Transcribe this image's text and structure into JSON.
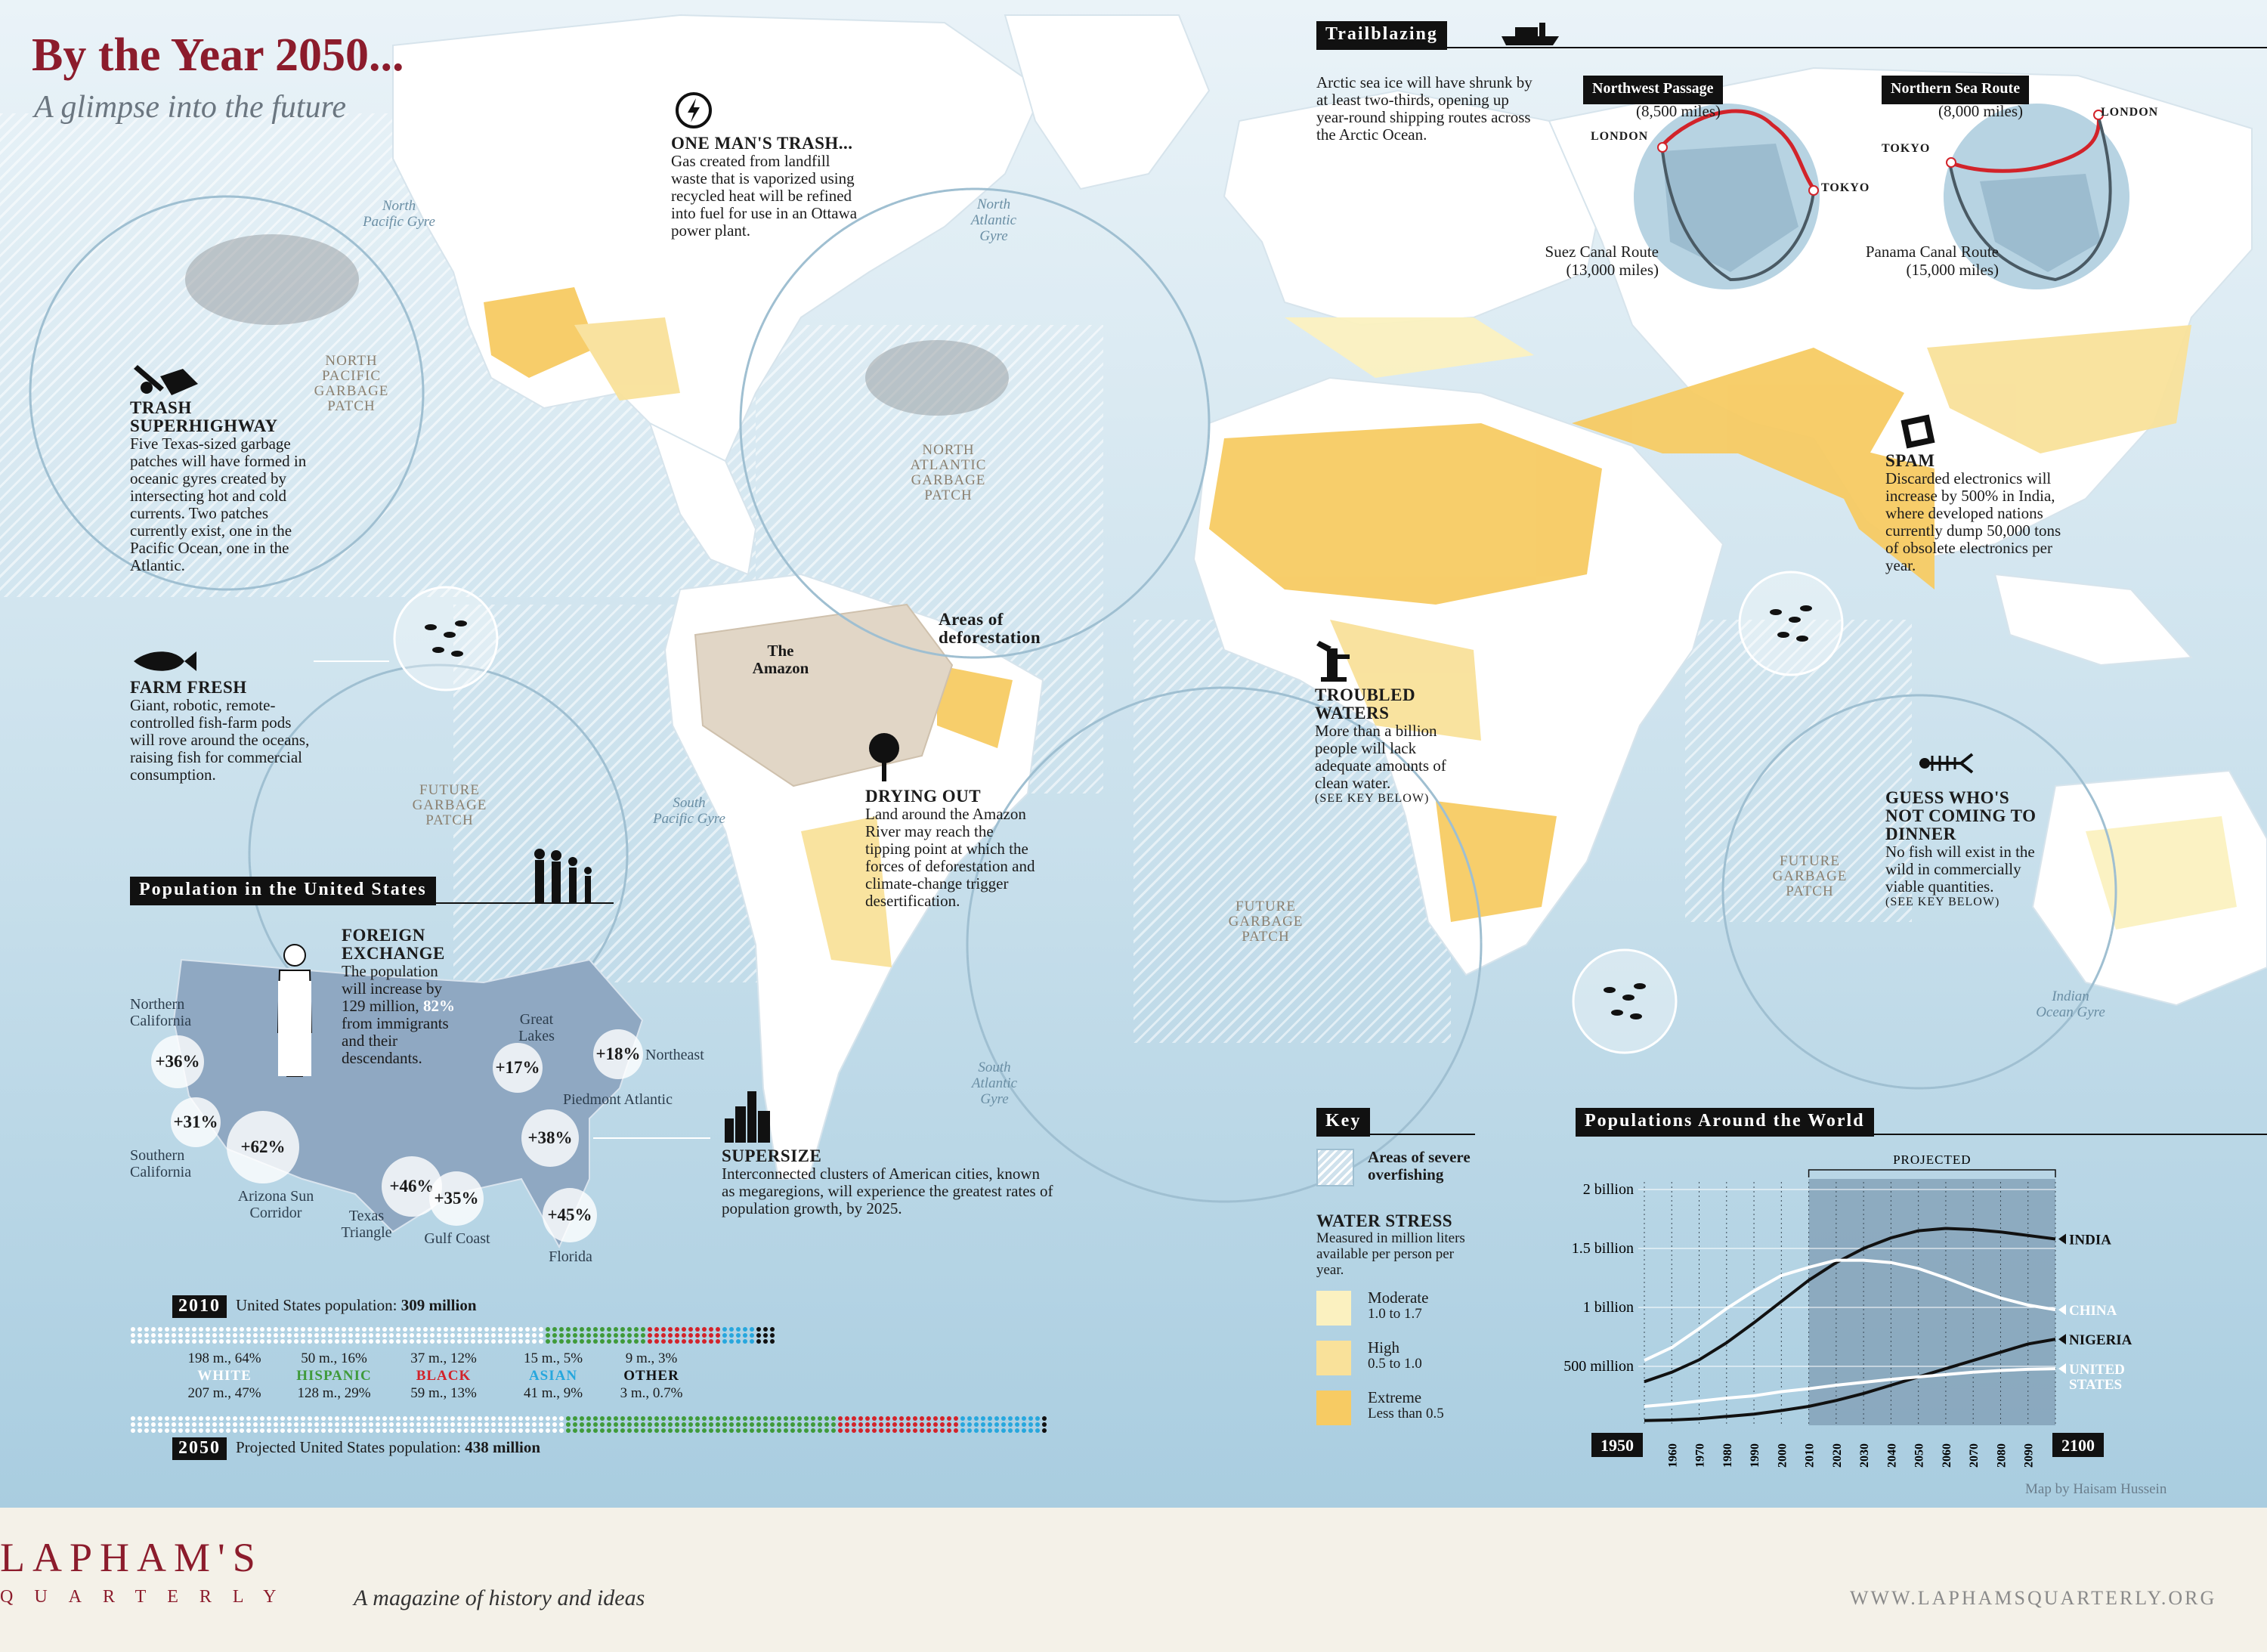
{
  "header": {
    "title": "By the Year 2050...",
    "subtitle": "A glimpse into the future"
  },
  "trash": {
    "title": "One Man's Trash...",
    "body": "Gas created from landfill waste that is vaporized using recycled heat will be refined into fuel for use in an Ottawa power plant."
  },
  "trailblazing": {
    "label": "Trailblazing",
    "body": "Arctic sea ice will have shrunk by at least two-thirds, opening up year-round shipping routes across the Arctic Ocean.",
    "globe1": {
      "route": "Northwest Passage",
      "route_miles": "(8,500 miles)",
      "city_a": "LONDON",
      "city_b": "TOKYO",
      "alt_route": "Suez Canal Route",
      "alt_miles": "(13,000 miles)"
    },
    "globe2": {
      "route": "Northern Sea Route",
      "route_miles": "(8,000 miles)",
      "city_a": "TOKYO",
      "city_b": "LONDON",
      "alt_route": "Panama Canal Route",
      "alt_miles": "(15,000 miles)"
    }
  },
  "superhighway": {
    "title": "Trash Superhighway",
    "body": "Five Texas-sized garbage patches will have formed in oceanic gyres created by intersecting hot and cold currents. Two patches currently exist, one in the Pacific Ocean, one in the Atlantic."
  },
  "farm": {
    "title": "Farm Fresh",
    "body": "Giant, robotic, remote-controlled fish-farm pods will rove around the oceans, raising fish for commercial consumption."
  },
  "amazon": {
    "label": "The Amazon",
    "deforest": "Areas of deforestation"
  },
  "drying": {
    "title": "Drying Out",
    "body": "Land around the Amazon River may reach the tipping point at which the forces of deforestation and climate-change trigger desertification."
  },
  "troubled": {
    "title": "Troubled Waters",
    "body": "More than a billion people will lack adequate amounts of clean water.",
    "note": "(see key below)"
  },
  "spam": {
    "title": "Spam",
    "body": "Discarded electronics will increase by 500% in India, where developed nations currently dump 50,000 tons of obsolete electronics per year."
  },
  "dinner": {
    "title": "Guess Who's Not Coming to Dinner",
    "body": "No fish will exist in the wild in commercially viable quantities.",
    "note": "(see key below)"
  },
  "gyres": {
    "north_pacific": "North Pacific Gyre",
    "north_atlantic": "North Atlantic Gyre",
    "south_pacific": "South Pacific Gyre",
    "south_atlantic": "South Atlantic Gyre",
    "indian": "Indian Ocean Gyre"
  },
  "patches": {
    "north_pacific": "NORTH PACIFIC GARBAGE PATCH",
    "north_atlantic": "NORTH ATLANTIC GARBAGE PATCH",
    "future1": "FUTURE GARBAGE PATCH",
    "future2": "FUTURE GARBAGE PATCH",
    "future3": "FUTURE GARBAGE PATCH"
  },
  "us_pop": {
    "label": "Population in the United States",
    "foreign_title": "Foreign Exchange",
    "foreign_body_1": "The population will increase by 129 million,",
    "foreign_pct": "82%",
    "foreign_body_2": "from immigrants and their descendants.",
    "regions": [
      {
        "name": "Northern California",
        "value": "+36%"
      },
      {
        "name": "Southern California",
        "value": "+31%"
      },
      {
        "name": "Arizona Sun Corridor",
        "value": "+62%"
      },
      {
        "name": "Texas Triangle",
        "value": "+46%"
      },
      {
        "name": "Gulf Coast",
        "value": "+35%"
      },
      {
        "name": "Great Lakes",
        "value": "+17%"
      },
      {
        "name": "Northeast",
        "value": "+18%"
      },
      {
        "name": "Piedmont Atlantic",
        "value": "+38%"
      },
      {
        "name": "Florida",
        "value": "+45%"
      }
    ],
    "supersize_title": "Supersize",
    "supersize_body": "Interconnected clusters of American cities, known as megaregions, will experience the greatest rates of population growth, by 2025.",
    "y2010": "2010",
    "y2010_text": "United States population:",
    "y2010_value": "309 million",
    "y2050": "2050",
    "y2050_text": "Projected United States population:",
    "y2050_value": "438 million",
    "groups": [
      {
        "name": "WHITE",
        "v2010": "198 m., 64%",
        "v2050": "207 m., 47%",
        "color": "#ffffff",
        "p2010": 64,
        "p2050": 47
      },
      {
        "name": "HISPANIC",
        "v2010": "50 m., 16%",
        "v2050": "128 m., 29%",
        "color": "#3f9a3a",
        "p2010": 16,
        "p2050": 29
      },
      {
        "name": "BLACK",
        "v2010": "37 m., 12%",
        "v2050": "59 m., 13%",
        "color": "#d2232a",
        "p2010": 12,
        "p2050": 13
      },
      {
        "name": "ASIAN",
        "v2010": "15 m., 5%",
        "v2050": "41 m., 9%",
        "color": "#27a7dd",
        "p2010": 5,
        "p2050": 9
      },
      {
        "name": "OTHER",
        "v2010": "9 m., 3%",
        "v2050": "3 m., 0.7%",
        "color": "#111111",
        "p2010": 3,
        "p2050": 0.7
      }
    ]
  },
  "key": {
    "label": "Key",
    "overfishing": "Areas of severe overfishing",
    "water_title": "Water Stress",
    "water_sub": "Measured in million liters available per person per year.",
    "levels": [
      {
        "name": "Moderate",
        "range": "1.0 to 1.7",
        "color": "#fbf1c0"
      },
      {
        "name": "High",
        "range": "0.5 to 1.0",
        "color": "#f9e19a"
      },
      {
        "name": "Extreme",
        "range": "Less than 0.5",
        "color": "#f7cb63"
      }
    ]
  },
  "world_pop": {
    "label": "Populations Around the World",
    "projected": "PROJECTED",
    "credit": "Map by Haisam Hussein"
  },
  "chart_data": {
    "type": "line",
    "title": "Populations Around the World",
    "x": [
      1950,
      1960,
      1970,
      1980,
      1990,
      2000,
      2010,
      2020,
      2030,
      2040,
      2050,
      2060,
      2070,
      2080,
      2090,
      2100
    ],
    "x_ticks": [
      "1960",
      "1970",
      "1980",
      "1990",
      "2000",
      "2010",
      "2020",
      "2030",
      "2040",
      "2050",
      "2060",
      "2070",
      "2080",
      "2090"
    ],
    "x_end_labels": [
      "1950",
      "2100"
    ],
    "y_ticks": [
      {
        "v": 500,
        "label": "500 million"
      },
      {
        "v": 1000,
        "label": "1 billion"
      },
      {
        "v": 1500,
        "label": "1.5 billion"
      },
      {
        "v": 2000,
        "label": "2 billion"
      }
    ],
    "ylim": [
      0,
      2000
    ],
    "projected_range": [
      2010,
      2100
    ],
    "series": [
      {
        "name": "INDIA",
        "color": "#111111",
        "values": [
          370,
          450,
          555,
          700,
          870,
          1050,
          1230,
          1380,
          1500,
          1590,
          1650,
          1670,
          1660,
          1640,
          1610,
          1580
        ]
      },
      {
        "name": "CHINA",
        "color": "#ffffff",
        "values": [
          550,
          660,
          820,
          990,
          1140,
          1270,
          1340,
          1400,
          1400,
          1380,
          1330,
          1250,
          1160,
          1080,
          1020,
          980
        ]
      },
      {
        "name": "NIGERIA",
        "color": "#111111",
        "values": [
          40,
          45,
          55,
          75,
          95,
          125,
          160,
          210,
          270,
          340,
          410,
          480,
          550,
          620,
          690,
          730
        ]
      },
      {
        "name": "UNITED STATES",
        "color": "#ffffff",
        "values": [
          160,
          180,
          205,
          230,
          250,
          285,
          310,
          340,
          365,
          390,
          410,
          430,
          450,
          465,
          475,
          480
        ]
      }
    ]
  },
  "footer": {
    "brand_1": "LAPHAM'S",
    "brand_2": "QUARTERLY",
    "tagline": "A magazine of history and ideas",
    "url": "WWW.LAPHAMSQUARTERLY.ORG"
  }
}
